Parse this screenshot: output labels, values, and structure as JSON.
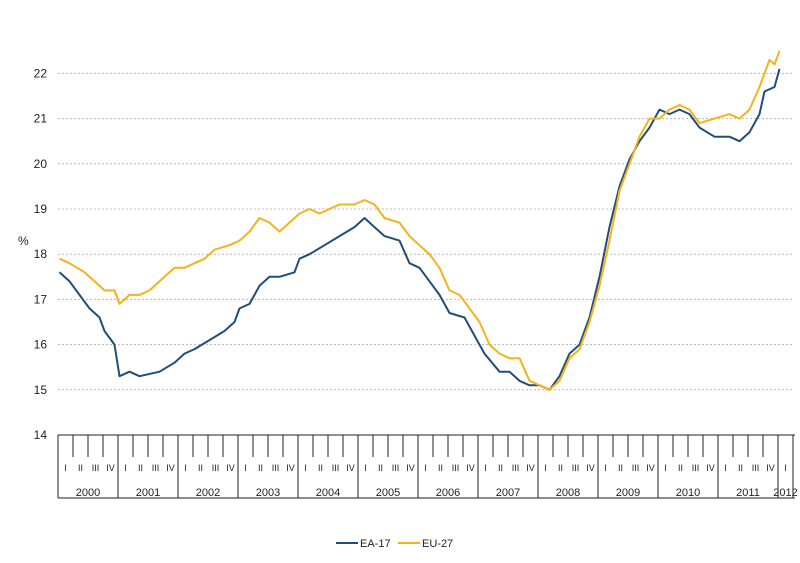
{
  "chart_data": {
    "type": "line",
    "title": "",
    "xlabel": "",
    "ylabel": "%",
    "ylim": [
      14,
      22.8
    ],
    "yticks": [
      14,
      15,
      16,
      17,
      18,
      19,
      20,
      21,
      22
    ],
    "grid": true,
    "legend_position": "bottom",
    "x_start": "2000-01",
    "x_end": "2012-01",
    "years": [
      "2000",
      "2001",
      "2002",
      "2003",
      "2004",
      "2005",
      "2006",
      "2007",
      "2008",
      "2009",
      "2010",
      "2011",
      "2012"
    ],
    "quarters": [
      "I",
      "II",
      "III",
      "IV"
    ],
    "series": [
      {
        "name": "EA-17",
        "color": "#1f4e79",
        "anchors": [
          [
            "2000-01",
            17.6
          ],
          [
            "2000-03",
            17.4
          ],
          [
            "2000-05",
            17.1
          ],
          [
            "2000-07",
            16.8
          ],
          [
            "2000-09",
            16.6
          ],
          [
            "2000-10",
            16.3
          ],
          [
            "2000-12",
            16.0
          ],
          [
            "2001-01",
            15.3
          ],
          [
            "2001-03",
            15.4
          ],
          [
            "2001-05",
            15.3
          ],
          [
            "2001-09",
            15.4
          ],
          [
            "2001-12",
            15.6
          ],
          [
            "2002-02",
            15.8
          ],
          [
            "2002-04",
            15.9
          ],
          [
            "2002-07",
            16.1
          ],
          [
            "2002-10",
            16.3
          ],
          [
            "2002-12",
            16.5
          ],
          [
            "2003-01",
            16.8
          ],
          [
            "2003-03",
            16.9
          ],
          [
            "2003-05",
            17.3
          ],
          [
            "2003-07",
            17.5
          ],
          [
            "2003-09",
            17.5
          ],
          [
            "2003-12",
            17.6
          ],
          [
            "2004-01",
            17.9
          ],
          [
            "2004-03",
            18.0
          ],
          [
            "2004-06",
            18.2
          ],
          [
            "2004-09",
            18.4
          ],
          [
            "2004-12",
            18.6
          ],
          [
            "2005-02",
            18.8
          ],
          [
            "2005-04",
            18.6
          ],
          [
            "2005-06",
            18.4
          ],
          [
            "2005-09",
            18.3
          ],
          [
            "2005-11",
            17.8
          ],
          [
            "2006-01",
            17.7
          ],
          [
            "2006-03",
            17.4
          ],
          [
            "2006-05",
            17.1
          ],
          [
            "2006-07",
            16.7
          ],
          [
            "2006-10",
            16.6
          ],
          [
            "2006-12",
            16.2
          ],
          [
            "2007-02",
            15.8
          ],
          [
            "2007-05",
            15.4
          ],
          [
            "2007-07",
            15.4
          ],
          [
            "2007-09",
            15.2
          ],
          [
            "2007-11",
            15.1
          ],
          [
            "2008-01",
            15.1
          ],
          [
            "2008-03",
            15.0
          ],
          [
            "2008-05",
            15.3
          ],
          [
            "2008-07",
            15.8
          ],
          [
            "2008-09",
            16.0
          ],
          [
            "2008-11",
            16.6
          ],
          [
            "2009-01",
            17.5
          ],
          [
            "2009-03",
            18.6
          ],
          [
            "2009-05",
            19.5
          ],
          [
            "2009-07",
            20.1
          ],
          [
            "2009-09",
            20.5
          ],
          [
            "2009-11",
            20.8
          ],
          [
            "2010-01",
            21.2
          ],
          [
            "2010-03",
            21.1
          ],
          [
            "2010-05",
            21.2
          ],
          [
            "2010-07",
            21.1
          ],
          [
            "2010-09",
            20.8
          ],
          [
            "2010-12",
            20.6
          ],
          [
            "2011-03",
            20.6
          ],
          [
            "2011-05",
            20.5
          ],
          [
            "2011-07",
            20.7
          ],
          [
            "2011-09",
            21.1
          ],
          [
            "2011-10",
            21.6
          ],
          [
            "2011-12",
            21.7
          ],
          [
            "2012-01",
            22.1
          ]
        ]
      },
      {
        "name": "EU-27",
        "color": "#f5b21b",
        "anchors": [
          [
            "2000-01",
            17.9
          ],
          [
            "2000-03",
            17.8
          ],
          [
            "2000-06",
            17.6
          ],
          [
            "2000-08",
            17.4
          ],
          [
            "2000-10",
            17.2
          ],
          [
            "2000-12",
            17.2
          ],
          [
            "2001-01",
            16.9
          ],
          [
            "2001-03",
            17.1
          ],
          [
            "2001-05",
            17.1
          ],
          [
            "2001-07",
            17.2
          ],
          [
            "2001-10",
            17.5
          ],
          [
            "2001-12",
            17.7
          ],
          [
            "2002-02",
            17.7
          ],
          [
            "2002-04",
            17.8
          ],
          [
            "2002-06",
            17.9
          ],
          [
            "2002-08",
            18.1
          ],
          [
            "2002-11",
            18.2
          ],
          [
            "2003-01",
            18.3
          ],
          [
            "2003-03",
            18.5
          ],
          [
            "2003-05",
            18.8
          ],
          [
            "2003-07",
            18.7
          ],
          [
            "2003-09",
            18.5
          ],
          [
            "2003-11",
            18.7
          ],
          [
            "2004-01",
            18.9
          ],
          [
            "2004-03",
            19.0
          ],
          [
            "2004-05",
            18.9
          ],
          [
            "2004-07",
            19.0
          ],
          [
            "2004-09",
            19.1
          ],
          [
            "2004-12",
            19.1
          ],
          [
            "2005-02",
            19.2
          ],
          [
            "2005-04",
            19.1
          ],
          [
            "2005-06",
            18.8
          ],
          [
            "2005-09",
            18.7
          ],
          [
            "2005-11",
            18.4
          ],
          [
            "2006-01",
            18.2
          ],
          [
            "2006-03",
            18.0
          ],
          [
            "2006-05",
            17.7
          ],
          [
            "2006-07",
            17.2
          ],
          [
            "2006-09",
            17.1
          ],
          [
            "2006-11",
            16.8
          ],
          [
            "2007-01",
            16.5
          ],
          [
            "2007-03",
            16.0
          ],
          [
            "2007-05",
            15.8
          ],
          [
            "2007-07",
            15.7
          ],
          [
            "2007-09",
            15.7
          ],
          [
            "2007-11",
            15.2
          ],
          [
            "2008-01",
            15.1
          ],
          [
            "2008-03",
            15.0
          ],
          [
            "2008-05",
            15.2
          ],
          [
            "2008-07",
            15.7
          ],
          [
            "2008-09",
            15.9
          ],
          [
            "2008-11",
            16.5
          ],
          [
            "2009-01",
            17.3
          ],
          [
            "2009-03",
            18.3
          ],
          [
            "2009-05",
            19.4
          ],
          [
            "2009-07",
            20.0
          ],
          [
            "2009-09",
            20.6
          ],
          [
            "2009-11",
            21.0
          ],
          [
            "2010-01",
            21.0
          ],
          [
            "2010-03",
            21.2
          ],
          [
            "2010-05",
            21.3
          ],
          [
            "2010-07",
            21.2
          ],
          [
            "2010-09",
            20.9
          ],
          [
            "2010-12",
            21.0
          ],
          [
            "2011-03",
            21.1
          ],
          [
            "2011-05",
            21.0
          ],
          [
            "2011-07",
            21.2
          ],
          [
            "2011-09",
            21.7
          ],
          [
            "2011-11",
            22.3
          ],
          [
            "2011-12",
            22.2
          ],
          [
            "2012-01",
            22.5
          ]
        ]
      }
    ]
  }
}
